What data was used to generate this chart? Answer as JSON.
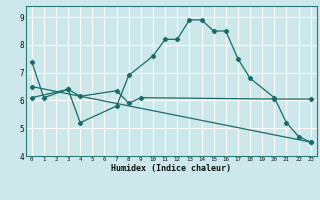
{
  "xlabel": "Humidex (Indice chaleur)",
  "bg_color": "#cce8ea",
  "grid_color": "#ffffff",
  "line_color": "#1a6b6b",
  "xlim": [
    -0.5,
    23.5
  ],
  "ylim": [
    4.0,
    9.4
  ],
  "xticks": [
    0,
    1,
    2,
    3,
    4,
    5,
    6,
    7,
    8,
    9,
    10,
    11,
    12,
    13,
    14,
    15,
    16,
    17,
    18,
    19,
    20,
    21,
    22,
    23
  ],
  "yticks": [
    4,
    5,
    6,
    7,
    8,
    9
  ],
  "line1_x": [
    0,
    1,
    3,
    4,
    7,
    8,
    10,
    11,
    12,
    13,
    14,
    15,
    16,
    17,
    18,
    20,
    21,
    22,
    23
  ],
  "line1_y": [
    7.4,
    6.1,
    6.4,
    5.2,
    5.8,
    6.9,
    7.6,
    8.2,
    8.2,
    8.9,
    8.9,
    8.5,
    8.5,
    7.5,
    6.8,
    6.1,
    5.2,
    4.7,
    4.5
  ],
  "line2_x": [
    0,
    3,
    4,
    7,
    8,
    9,
    20,
    23
  ],
  "line2_y": [
    6.1,
    6.4,
    6.15,
    6.35,
    5.9,
    6.1,
    6.05,
    6.05
  ],
  "line3_x": [
    0,
    23
  ],
  "line3_y": [
    6.5,
    4.5
  ]
}
